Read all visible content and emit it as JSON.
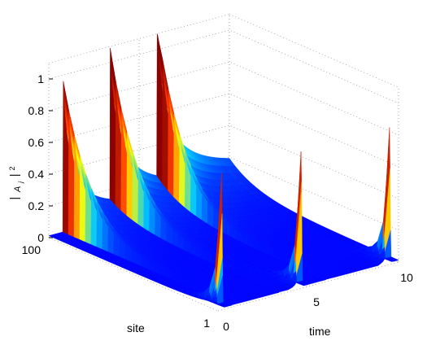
{
  "chart_data": {
    "type": "surface",
    "title": "",
    "xlabel": "time",
    "ylabel": "site",
    "zlabel": "|A_j|^2",
    "xlim": [
      0,
      10
    ],
    "ylim": [
      1,
      100
    ],
    "zlim": [
      0,
      1.1
    ],
    "x_ticks": [
      "0",
      "5",
      "10"
    ],
    "y_ticks": [
      "1",
      "100"
    ],
    "z_ticks": [
      "0",
      "0.2",
      "0.4",
      "0.6",
      "0.8",
      "1"
    ],
    "grid": true,
    "colormap": "jet",
    "colors": {
      "low": "#0000ff",
      "mid_low": "#00c0ff",
      "mid": "#ffff00",
      "high": "#ff0000",
      "dark_high": "#8b0000"
    },
    "site_100_peaks": [
      {
        "time": 0.8,
        "value": 1.0
      },
      {
        "time": 3.4,
        "value": 1.0
      },
      {
        "time": 6.0,
        "value": 1.0
      }
    ],
    "site_1_peaks": [
      {
        "time": 0.2,
        "value": 0.85
      },
      {
        "time": 4.6,
        "value": 0.85
      },
      {
        "time": 9.5,
        "value": 0.85
      }
    ],
    "baseline_value": 0.03
  }
}
